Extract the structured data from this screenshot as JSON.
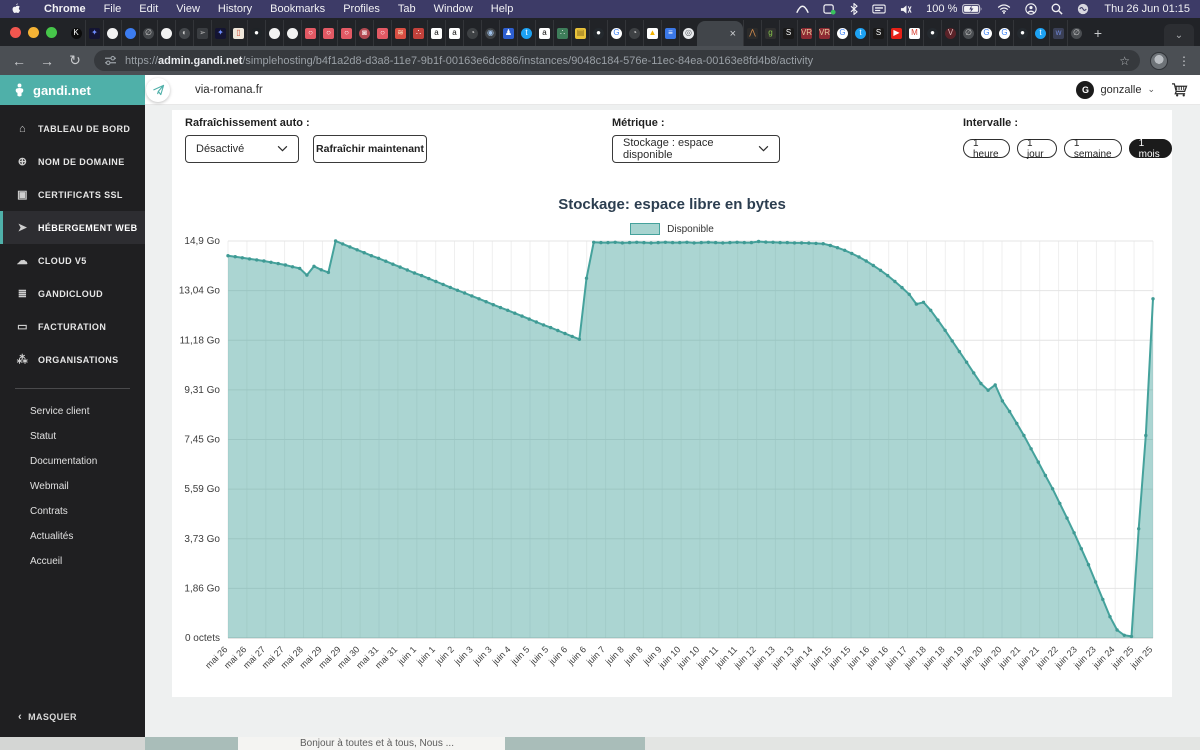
{
  "menubar": {
    "items": [
      "Chrome",
      "File",
      "Edit",
      "View",
      "History",
      "Bookmarks",
      "Profiles",
      "Tab",
      "Window",
      "Help"
    ],
    "status": {
      "battery_pct": "100 %",
      "clock": "Thu 26 Jun 01:15"
    }
  },
  "browser": {
    "lights": [
      "#f1564f",
      "#f5b335",
      "#46c64a"
    ],
    "tabs_before": [
      {
        "bg": "#0b0b0b",
        "fg": "#ffffff",
        "g": "K",
        "shape": "c"
      },
      {
        "bg": "#141432",
        "fg": "#6f8dff",
        "g": "✦",
        "shape": "s"
      },
      {
        "bg": "#f2f2f2",
        "fg": "#191919",
        "g": "",
        "shape": "c"
      },
      {
        "bg": "#3c7cf0",
        "fg": "#ffffff",
        "g": "",
        "shape": "c"
      },
      {
        "bg": "#44474b",
        "fg": "#c8c8c8",
        "g": "∅",
        "shape": "c"
      },
      {
        "bg": "#f2f2f2",
        "fg": "#191919",
        "g": "",
        "shape": "c"
      },
      {
        "bg": "#44474b",
        "fg": "#c8c8c8",
        "g": "◐",
        "shape": "c"
      },
      {
        "bg": "#3a3d41",
        "fg": "#b5b5b5",
        "g": "➢",
        "shape": "s"
      },
      {
        "bg": "#141432",
        "fg": "#6f8dff",
        "g": "✦",
        "shape": "s"
      },
      {
        "bg": "#efe7da",
        "fg": "#d2573e",
        "g": "▯",
        "shape": "s"
      },
      {
        "bg": "#1f2327",
        "fg": "#ffffff",
        "g": "●",
        "shape": "c"
      },
      {
        "bg": "#f2f2f2",
        "fg": "#191919",
        "g": "",
        "shape": "c"
      },
      {
        "bg": "#f2f2f2",
        "fg": "#191919",
        "g": "",
        "shape": "c"
      },
      {
        "bg": "#e25964",
        "fg": "#ffffff",
        "g": "○",
        "shape": "s"
      },
      {
        "bg": "#e25964",
        "fg": "#ffffff",
        "g": "○",
        "shape": "s"
      },
      {
        "bg": "#e25964",
        "fg": "#ffffff",
        "g": "○",
        "shape": "s"
      },
      {
        "bg": "#b24a52",
        "fg": "#f0d9d9",
        "g": "◙",
        "shape": "c"
      },
      {
        "bg": "#e25964",
        "fg": "#ffffff",
        "g": "○",
        "shape": "s"
      },
      {
        "bg": "#d94f43",
        "fg": "#f6e3c0",
        "g": "≋",
        "shape": "s"
      },
      {
        "bg": "#c2413b",
        "fg": "#ffffff",
        "g": "∴",
        "shape": "s"
      },
      {
        "bg": "#ffffff",
        "fg": "#111111",
        "g": "a",
        "shape": "s"
      },
      {
        "bg": "#ffffff",
        "fg": "#111111",
        "g": "a",
        "shape": "s"
      },
      {
        "bg": "#3e4144",
        "fg": "#cccccc",
        "g": "◔",
        "shape": "c"
      },
      {
        "bg": "#3e4144",
        "fg": "#9fc0e8",
        "g": "◉",
        "shape": "c"
      },
      {
        "bg": "#2d5fd0",
        "fg": "#ffffff",
        "g": "♟",
        "shape": "s"
      },
      {
        "bg": "#1da1f2",
        "fg": "#ffffff",
        "g": "t",
        "shape": "c"
      },
      {
        "bg": "#ffffff",
        "fg": "#111111",
        "g": "a",
        "shape": "s"
      },
      {
        "bg": "#3e7d5a",
        "fg": "#dfe9e2",
        "g": "∴",
        "shape": "s"
      },
      {
        "bg": "#e8c23a",
        "fg": "#8a6d1f",
        "g": "▤",
        "shape": "s"
      },
      {
        "bg": "#24292e",
        "fg": "#ffffff",
        "g": "●",
        "shape": "c"
      },
      {
        "bg": "#ffffff",
        "fg": "#4285f4",
        "g": "G",
        "shape": "c"
      },
      {
        "bg": "#3e4144",
        "fg": "#cccccc",
        "g": "◔",
        "shape": "c"
      },
      {
        "bg": "#ffffff",
        "fg": "#f4b400",
        "g": "▲",
        "shape": "s"
      },
      {
        "bg": "#3b78e7",
        "fg": "#ffffff",
        "g": "≡",
        "shape": "s"
      },
      {
        "bg": "#e8eaed",
        "fg": "#5f6368",
        "g": "◎",
        "shape": "c"
      }
    ],
    "active_tab": {
      "close": "×"
    },
    "tabs_after": [
      {
        "bg": "#2b2b2b",
        "fg": "#d98f4e",
        "g": "⋀",
        "shape": "s"
      },
      {
        "bg": "#303030",
        "fg": "#86c44a",
        "g": "g",
        "shape": "s"
      },
      {
        "bg": "#1a1a1a",
        "fg": "#ffffff",
        "g": "S",
        "shape": "s"
      },
      {
        "bg": "#8e2b33",
        "fg": "#e8c9a0",
        "g": "VR",
        "shape": "s"
      },
      {
        "bg": "#8e2b33",
        "fg": "#e8c9a0",
        "g": "VR",
        "shape": "s"
      },
      {
        "bg": "#ffffff",
        "fg": "#4285f4",
        "g": "G",
        "shape": "c"
      },
      {
        "bg": "#1da1f2",
        "fg": "#ffffff",
        "g": "t",
        "shape": "c"
      },
      {
        "bg": "#1a1a1a",
        "fg": "#ffffff",
        "g": "S",
        "shape": "s"
      },
      {
        "bg": "#e62117",
        "fg": "#ffffff",
        "g": "▶",
        "shape": "s"
      },
      {
        "bg": "#ffffff",
        "fg": "#d93f32",
        "g": "M",
        "shape": "s"
      },
      {
        "bg": "#24292e",
        "fg": "#ffffff",
        "g": "●",
        "shape": "c"
      },
      {
        "bg": "#5a2228",
        "fg": "#e3b8b8",
        "g": "V",
        "shape": "c"
      },
      {
        "bg": "#4a4d51",
        "fg": "#c8c8c8",
        "g": "∅",
        "shape": "c"
      },
      {
        "bg": "#ffffff",
        "fg": "#4285f4",
        "g": "G",
        "shape": "c"
      },
      {
        "bg": "#ffffff",
        "fg": "#4285f4",
        "g": "G",
        "shape": "c"
      },
      {
        "bg": "#24292e",
        "fg": "#ffffff",
        "g": "●",
        "shape": "c"
      },
      {
        "bg": "#1da1f2",
        "fg": "#ffffff",
        "g": "t",
        "shape": "c"
      },
      {
        "bg": "#3a3f55",
        "fg": "#6f86d6",
        "g": "w",
        "shape": "s"
      },
      {
        "bg": "#4a4d51",
        "fg": "#c8c8c8",
        "g": "∅",
        "shape": "c"
      }
    ],
    "new_tab": "+",
    "tab_menu_chevron": "⌄",
    "nav": {
      "back": "←",
      "forward": "→",
      "reload": "↻"
    },
    "omnibox": {
      "scheme": "https://",
      "domain": "admin.gandi.net",
      "path": "/simplehosting/b4f1a2d8-d3a8-11e7-9b1f-00163e6dc886/instances/9048c184-576e-11ec-84ea-00163e8fd4b8/activity",
      "star": "☆"
    },
    "kebab": "⋮"
  },
  "sidebar": {
    "brand": "gandi.net",
    "nav": [
      {
        "icon": "home",
        "label": "TABLEAU DE BORD",
        "selected": false
      },
      {
        "icon": "globe",
        "label": "NOM DE DOMAINE",
        "selected": false
      },
      {
        "icon": "certificate",
        "label": "CERTIFICATS SSL",
        "selected": false
      },
      {
        "icon": "paper-plane",
        "label": "HÉBERGEMENT WEB",
        "selected": true
      },
      {
        "icon": "cloud",
        "label": "CLOUD V5",
        "selected": false
      },
      {
        "icon": "stack",
        "label": "GANDICLOUD",
        "selected": false
      },
      {
        "icon": "credit-card",
        "label": "FACTURATION",
        "selected": false
      },
      {
        "icon": "organisation",
        "label": "ORGANISATIONS",
        "selected": false
      }
    ],
    "links": [
      "Service client",
      "Statut",
      "Documentation",
      "Webmail",
      "Contrats",
      "Actualités",
      "Accueil"
    ],
    "collapse_chevron": "‹",
    "collapse": "MASQUER"
  },
  "topbar": {
    "domain": "via-romana.fr",
    "user": "gonzalle",
    "avatar": "G",
    "user_chevron": "⌄"
  },
  "controls": {
    "refresh_label": "Rafraîchissement auto :",
    "refresh_value": "Désactivé",
    "refresh_button": "Rafraîchir maintenant",
    "metric_label": "Métrique :",
    "metric_value": "Stockage : espace disponible",
    "interval_label": "Intervalle :",
    "intervals": [
      "1 heure",
      "1 jour",
      "1 semaine",
      "1 mois"
    ],
    "interval_selected": "1 mois"
  },
  "chart_data": {
    "type": "area",
    "title": "Stockage: espace libre en bytes",
    "legend": [
      "Disponible"
    ],
    "unit": "Go",
    "ylim": [
      0,
      14.9
    ],
    "y_ticks": [
      "14,9 Go",
      "13,04 Go",
      "11,18 Go",
      "9,31 Go",
      "7,45 Go",
      "5,59 Go",
      "3,73 Go",
      "1,86 Go",
      "0 octets"
    ],
    "x_labels": [
      "mai 26",
      "mai 26",
      "mai 27",
      "mai 27",
      "mai 28",
      "mai 29",
      "mai 29",
      "mai 30",
      "mai 31",
      "mai 31",
      "juin 1",
      "juin 1",
      "juin 2",
      "juin 3",
      "juin 3",
      "juin 4",
      "juin 5",
      "juin 5",
      "juin 6",
      "juin 6",
      "juin 7",
      "juin 8",
      "juin 8",
      "juin 9",
      "juin 10",
      "juin 10",
      "juin 11",
      "juin 11",
      "juin 12",
      "juin 13",
      "juin 13",
      "juin 14",
      "juin 15",
      "juin 15",
      "juin 16",
      "juin 16",
      "juin 17",
      "juin 18",
      "juin 18",
      "juin 19",
      "juin 20",
      "juin 20",
      "juin 21",
      "juin 21",
      "juin 22",
      "juin 23",
      "juin 23",
      "juin 24",
      "juin 25",
      "juin 25"
    ],
    "values": [
      14.35,
      14.31,
      14.27,
      14.23,
      14.19,
      14.15,
      14.1,
      14.05,
      14.0,
      13.93,
      13.87,
      13.62,
      13.95,
      13.82,
      13.72,
      14.9,
      14.79,
      14.68,
      14.57,
      14.46,
      14.35,
      14.25,
      14.14,
      14.03,
      13.92,
      13.81,
      13.7,
      13.6,
      13.49,
      13.38,
      13.27,
      13.16,
      13.05,
      12.95,
      12.84,
      12.73,
      12.62,
      12.51,
      12.4,
      12.3,
      12.19,
      12.08,
      11.97,
      11.86,
      11.75,
      11.65,
      11.54,
      11.43,
      11.32,
      11.21,
      13.5,
      14.85,
      14.84,
      14.84,
      14.85,
      14.83,
      14.84,
      14.85,
      14.84,
      14.83,
      14.84,
      14.85,
      14.84,
      14.84,
      14.85,
      14.83,
      14.84,
      14.85,
      14.84,
      14.83,
      14.84,
      14.85,
      14.84,
      14.84,
      14.88,
      14.86,
      14.85,
      14.84,
      14.84,
      14.83,
      14.83,
      14.82,
      14.81,
      14.8,
      14.73,
      14.65,
      14.55,
      14.43,
      14.3,
      14.15,
      13.98,
      13.8,
      13.6,
      13.38,
      13.15,
      12.9,
      12.53,
      12.6,
      12.3,
      11.93,
      11.55,
      11.15,
      10.75,
      10.35,
      9.95,
      9.55,
      9.3,
      9.5,
      8.9,
      8.5,
      8.05,
      7.6,
      7.1,
      6.6,
      6.1,
      5.6,
      5.05,
      4.5,
      3.95,
      3.35,
      2.75,
      2.1,
      1.45,
      0.8,
      0.3,
      0.1,
      0.06,
      4.1,
      7.6,
      12.73
    ],
    "colors": {
      "line": "#45a29c",
      "fill": "rgba(69,162,156,0.45)",
      "legend_fill": "#a7d4d0",
      "dot": "#3f9a94"
    },
    "grid": true,
    "legend_position": "top-center"
  },
  "footer": {
    "teaser": "Bonjour à toutes et à tous, Nous ..."
  }
}
